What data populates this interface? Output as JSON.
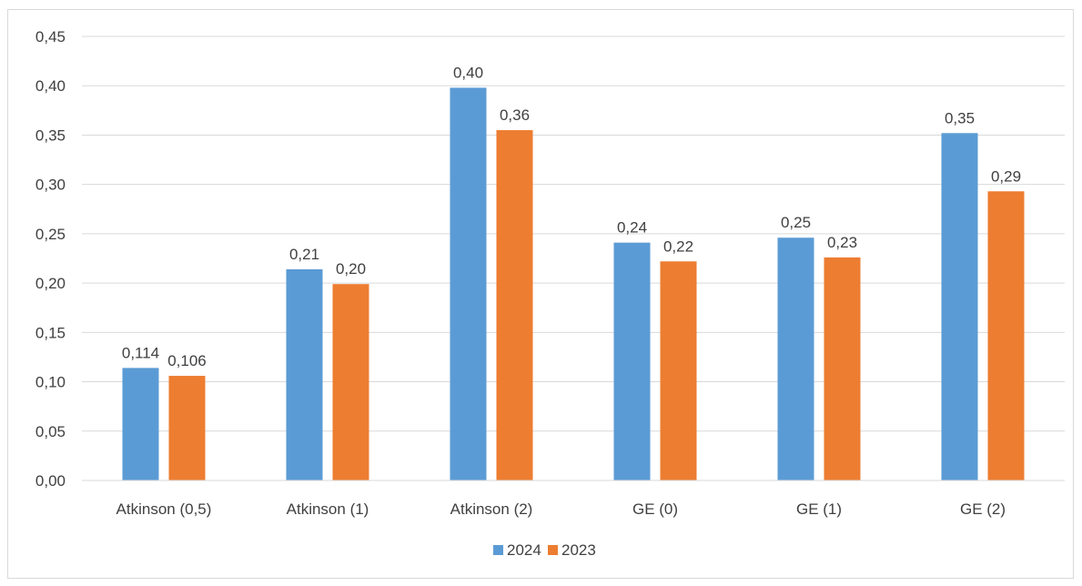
{
  "chart_data": {
    "type": "bar",
    "categories": [
      "Atkinson (0,5)",
      "Atkinson (1)",
      "Atkinson (2)",
      "GE (0)",
      "GE (1)",
      "GE (2)"
    ],
    "series": [
      {
        "name": "2024",
        "values": [
          0.114,
          0.214,
          0.398,
          0.241,
          0.246,
          0.352
        ],
        "labels": [
          "0,114",
          "0,21",
          "0,40",
          "0,24",
          "0,25",
          "0,35"
        ],
        "color": "#5b9bd5"
      },
      {
        "name": "2023",
        "values": [
          0.106,
          0.199,
          0.355,
          0.222,
          0.226,
          0.293
        ],
        "labels": [
          "0,106",
          "0,20",
          "0,36",
          "0,22",
          "0,23",
          "0,29"
        ],
        "color": "#ed7d31"
      }
    ],
    "yticks": [
      "0,00",
      "0,05",
      "0,10",
      "0,15",
      "0,20",
      "0,25",
      "0,30",
      "0,35",
      "0,40",
      "0,45"
    ],
    "ylim": [
      0,
      0.45
    ],
    "grid": true,
    "legend": "bottom",
    "title": "",
    "xlabel": "",
    "ylabel": ""
  }
}
